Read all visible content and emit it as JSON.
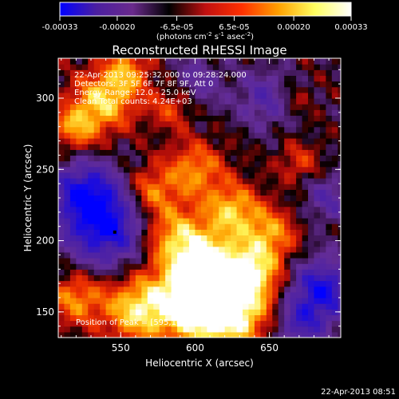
{
  "chart_data": {
    "type": "heatmap",
    "title": "Reconstructed RHESSI Image",
    "xlabel": "Heliocentric X (arcsec)",
    "ylabel": "Heliocentric Y (arcsec)",
    "xlim": [
      508,
      698
    ],
    "ylim": [
      132,
      328
    ],
    "x_ticks": [
      550,
      600,
      650
    ],
    "y_ticks": [
      150,
      200,
      250,
      300
    ],
    "colorbar": {
      "range": [
        -0.00033,
        0.00033
      ],
      "tick_values": [
        -0.00033,
        -0.0002,
        -6.5e-05,
        6.5e-05,
        0.0002,
        0.00033
      ],
      "tick_labels": [
        "-0.00033",
        "-0.00020",
        "-6.5e-05",
        "6.5e-05",
        "0.00020",
        "0.00033"
      ],
      "unit_parts": [
        "(photons cm",
        "-2",
        " s",
        "-1",
        " asec",
        "-2",
        ")"
      ],
      "colors": [
        "#0000ff",
        "#4b1fa0",
        "#6a2a8c",
        "#000000",
        "#c01010",
        "#ff3000",
        "#ffa000",
        "#ffff60",
        "#ffffff"
      ]
    },
    "info_lines": [
      "22-Apr-2013 09:25:32.000 to 09:28:24.000",
      "Detectors: 3F 5F 6F 7F 8F 9F, Att 0",
      "Energy Range: 12.0 - 25.0 keV",
      "Clean     Total counts: 4.24E+03"
    ],
    "peak_label": "Position of Peak = [595,163]",
    "peak": [
      595,
      163
    ],
    "marker": [
      546,
      206
    ],
    "blobs": [
      {
        "x": 598,
        "y": 158,
        "v": 1.0,
        "s": 20
      },
      {
        "x": 625,
        "y": 150,
        "v": 0.9,
        "s": 18
      },
      {
        "x": 560,
        "y": 152,
        "v": 0.75,
        "s": 16
      },
      {
        "x": 608,
        "y": 185,
        "v": 0.8,
        "s": 16
      },
      {
        "x": 640,
        "y": 178,
        "v": 0.7,
        "s": 14
      },
      {
        "x": 585,
        "y": 205,
        "v": 0.65,
        "s": 15
      },
      {
        "x": 625,
        "y": 222,
        "v": 0.7,
        "s": 13
      },
      {
        "x": 650,
        "y": 205,
        "v": 0.6,
        "s": 13
      },
      {
        "x": 570,
        "y": 235,
        "v": 0.55,
        "s": 12
      },
      {
        "x": 600,
        "y": 250,
        "v": 0.6,
        "s": 14
      },
      {
        "x": 540,
        "y": 300,
        "v": 0.75,
        "s": 15
      },
      {
        "x": 520,
        "y": 280,
        "v": 0.6,
        "s": 12
      },
      {
        "x": 555,
        "y": 320,
        "v": 0.5,
        "s": 11
      },
      {
        "x": 585,
        "y": 295,
        "v": 0.45,
        "s": 11
      },
      {
        "x": 520,
        "y": 160,
        "v": 0.6,
        "s": 13
      },
      {
        "x": 670,
        "y": 255,
        "v": 0.35,
        "s": 10
      },
      {
        "x": 665,
        "y": 300,
        "v": 0.3,
        "s": 10
      },
      {
        "x": 540,
        "y": 210,
        "v": -0.9,
        "s": 20
      },
      {
        "x": 525,
        "y": 235,
        "v": -0.7,
        "s": 16
      },
      {
        "x": 685,
        "y": 165,
        "v": -0.85,
        "s": 16
      },
      {
        "x": 650,
        "y": 300,
        "v": -0.5,
        "s": 14
      },
      {
        "x": 690,
        "y": 230,
        "v": -0.4,
        "s": 12
      },
      {
        "x": 600,
        "y": 310,
        "v": -0.35,
        "s": 14
      },
      {
        "x": 670,
        "y": 140,
        "v": -0.5,
        "s": 12
      }
    ]
  },
  "footer": {
    "timestamp": "22-Apr-2013 08:51"
  }
}
